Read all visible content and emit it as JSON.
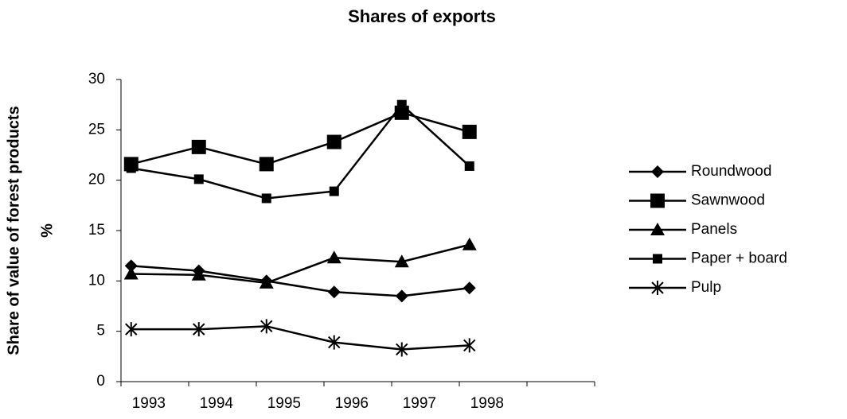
{
  "chart_data": {
    "type": "line",
    "title": "Shares of exports",
    "y_label": [
      "Share of value of forest products",
      "%"
    ],
    "categories": [
      "1993",
      "1994",
      "1995",
      "1996",
      "1997",
      "1998",
      null
    ],
    "series": [
      {
        "name": "Roundwood",
        "color": "#000000",
        "marker": "diamond",
        "values": [
          11.5,
          11.0,
          10.0,
          8.9,
          8.5,
          9.3,
          null
        ]
      },
      {
        "name": "Sawnwood",
        "color": "#000000",
        "marker": "square",
        "values": [
          21.6,
          23.3,
          21.6,
          23.8,
          26.7,
          24.8,
          null
        ]
      },
      {
        "name": "Panels",
        "color": "#000000",
        "marker": "triangle",
        "values": [
          10.7,
          10.6,
          9.8,
          12.3,
          11.9,
          13.6,
          null
        ]
      },
      {
        "name": "Paper + board",
        "color": "#000000",
        "marker": "small-square",
        "values": [
          21.2,
          20.1,
          18.2,
          18.9,
          27.5,
          21.4,
          null
        ]
      },
      {
        "name": "Pulp",
        "color": "#000000",
        "marker": "asterisk",
        "values": [
          5.2,
          5.2,
          5.5,
          3.9,
          3.2,
          3.6,
          null
        ]
      }
    ],
    "ylim": [
      0,
      30
    ],
    "yticks": [
      0,
      5,
      10,
      15,
      20,
      25,
      30
    ],
    "grid": false,
    "legend": "right"
  }
}
